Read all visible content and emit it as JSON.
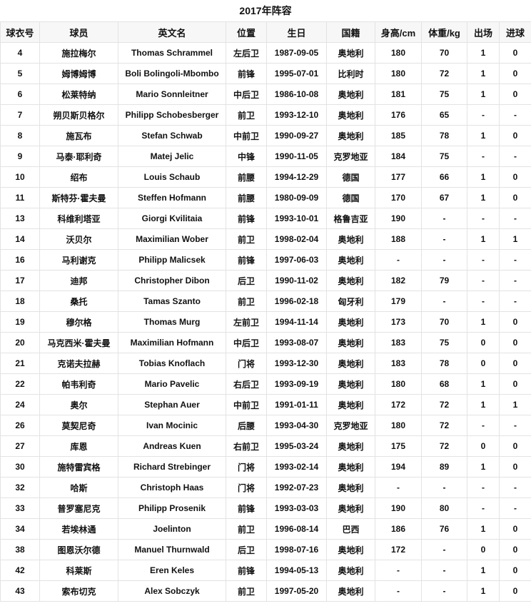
{
  "title": "2017年阵容",
  "columns": [
    "球衣号",
    "球员",
    "英文名",
    "位置",
    "生日",
    "国籍",
    "身高/cm",
    "体重/kg",
    "出场",
    "进球"
  ],
  "rows": [
    [
      "4",
      "施拉梅尔",
      "Thomas Schrammel",
      "左后卫",
      "1987-09-05",
      "奥地利",
      "180",
      "70",
      "1",
      "0"
    ],
    [
      "5",
      "姆博姆博",
      "Boli Bolingoli-Mbombo",
      "前锋",
      "1995-07-01",
      "比利时",
      "180",
      "72",
      "1",
      "0"
    ],
    [
      "6",
      "松莱特纳",
      "Mario Sonnleitner",
      "中后卫",
      "1986-10-08",
      "奥地利",
      "181",
      "75",
      "1",
      "0"
    ],
    [
      "7",
      "朔贝斯贝格尔",
      "Philipp Schobesberger",
      "前卫",
      "1993-12-10",
      "奥地利",
      "176",
      "65",
      "-",
      "-"
    ],
    [
      "8",
      "施瓦布",
      "Stefan Schwab",
      "中前卫",
      "1990-09-27",
      "奥地利",
      "185",
      "78",
      "1",
      "0"
    ],
    [
      "9",
      "马泰·耶利奇",
      "Matej Jelic",
      "中锋",
      "1990-11-05",
      "克罗地亚",
      "184",
      "75",
      "-",
      "-"
    ],
    [
      "10",
      "绍布",
      "Louis Schaub",
      "前腰",
      "1994-12-29",
      "德国",
      "177",
      "66",
      "1",
      "0"
    ],
    [
      "11",
      "斯特芬·霍夫曼",
      "Steffen Hofmann",
      "前腰",
      "1980-09-09",
      "德国",
      "170",
      "67",
      "1",
      "0"
    ],
    [
      "13",
      "科维利塔亚",
      "Giorgi Kvilitaia",
      "前锋",
      "1993-10-01",
      "格鲁吉亚",
      "190",
      "-",
      "-",
      "-"
    ],
    [
      "14",
      "沃贝尔",
      "Maximilian Wober",
      "前卫",
      "1998-02-04",
      "奥地利",
      "188",
      "-",
      "1",
      "1"
    ],
    [
      "16",
      "马利谢克",
      "Philipp Malicsek",
      "前锋",
      "1997-06-03",
      "奥地利",
      "-",
      "-",
      "-",
      "-"
    ],
    [
      "17",
      "迪邦",
      "Christopher Dibon",
      "后卫",
      "1990-11-02",
      "奥地利",
      "182",
      "79",
      "-",
      "-"
    ],
    [
      "18",
      "桑托",
      "Tamas Szanto",
      "前卫",
      "1996-02-18",
      "匈牙利",
      "179",
      "-",
      "-",
      "-"
    ],
    [
      "19",
      "穆尔格",
      "Thomas Murg",
      "左前卫",
      "1994-11-14",
      "奥地利",
      "173",
      "70",
      "1",
      "0"
    ],
    [
      "20",
      "马克西米·霍夫曼",
      "Maximilian Hofmann",
      "中后卫",
      "1993-08-07",
      "奥地利",
      "183",
      "75",
      "0",
      "0"
    ],
    [
      "21",
      "克诺夫拉赫",
      "Tobias Knoflach",
      "门将",
      "1993-12-30",
      "奥地利",
      "183",
      "78",
      "0",
      "0"
    ],
    [
      "22",
      "帕韦利奇",
      "Mario Pavelic",
      "右后卫",
      "1993-09-19",
      "奥地利",
      "180",
      "68",
      "1",
      "0"
    ],
    [
      "24",
      "奥尔",
      "Stephan Auer",
      "中前卫",
      "1991-01-11",
      "奥地利",
      "172",
      "72",
      "1",
      "1"
    ],
    [
      "26",
      "莫契尼奇",
      "Ivan Mocinic",
      "后腰",
      "1993-04-30",
      "克罗地亚",
      "180",
      "72",
      "-",
      "-"
    ],
    [
      "27",
      "库恩",
      "Andreas Kuen",
      "右前卫",
      "1995-03-24",
      "奥地利",
      "175",
      "72",
      "0",
      "0"
    ],
    [
      "30",
      "施特雷宾格",
      "Richard Strebinger",
      "门将",
      "1993-02-14",
      "奥地利",
      "194",
      "89",
      "1",
      "0"
    ],
    [
      "32",
      "哈斯",
      "Christoph Haas",
      "门将",
      "1992-07-23",
      "奥地利",
      "-",
      "-",
      "-",
      "-"
    ],
    [
      "33",
      "普罗塞尼克",
      "Philipp Prosenik",
      "前锋",
      "1993-03-03",
      "奥地利",
      "190",
      "80",
      "-",
      "-"
    ],
    [
      "34",
      "若埃林通",
      "Joelinton",
      "前卫",
      "1996-08-14",
      "巴西",
      "186",
      "76",
      "1",
      "0"
    ],
    [
      "38",
      "图恩沃尔德",
      "Manuel Thurnwald",
      "后卫",
      "1998-07-16",
      "奥地利",
      "172",
      "-",
      "0",
      "0"
    ],
    [
      "42",
      "科莱斯",
      "Eren Keles",
      "前锋",
      "1994-05-13",
      "奥地利",
      "-",
      "-",
      "1",
      "0"
    ],
    [
      "43",
      "索布切克",
      "Alex Sobczyk",
      "前卫",
      "1997-05-20",
      "奥地利",
      "-",
      "-",
      "1",
      "0"
    ]
  ]
}
